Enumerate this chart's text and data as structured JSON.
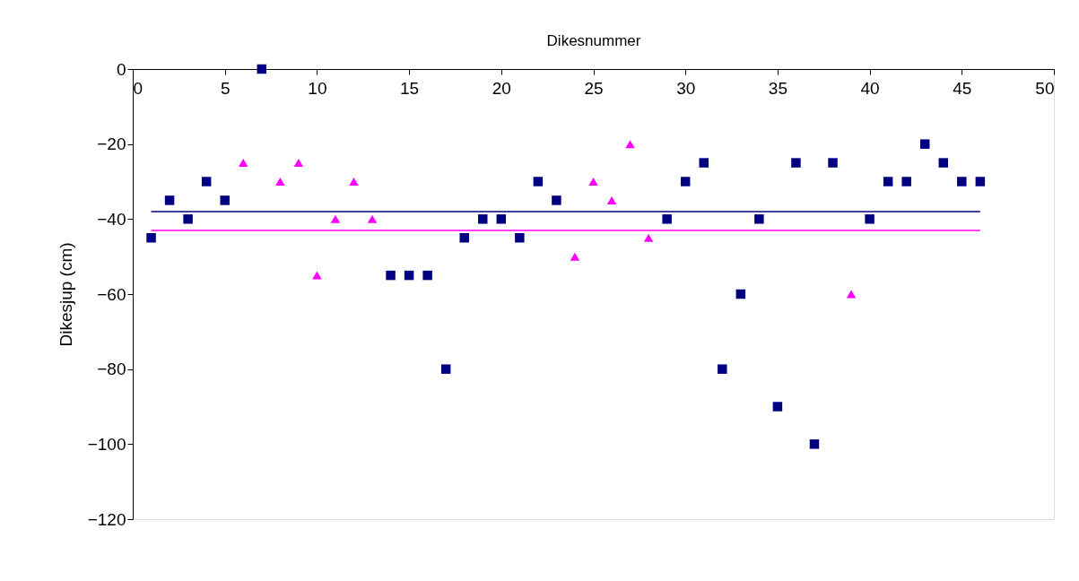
{
  "chart_data": {
    "type": "scatter",
    "xlabel": "Dikesnummer",
    "ylabel": "Dikesjup (cm)",
    "xlim": [
      0,
      50
    ],
    "xticks": [
      0,
      5,
      10,
      15,
      20,
      25,
      30,
      35,
      40,
      45,
      50
    ],
    "ylim": [
      -120,
      0
    ],
    "yticks": [
      -120,
      -100,
      -80,
      -60,
      -40,
      -20,
      0
    ],
    "grid": false,
    "series": [
      {
        "color": "#000080",
        "marker": "square",
        "x": [
          1,
          2,
          3,
          4,
          5,
          7,
          14,
          15,
          16,
          17,
          18,
          19,
          20,
          21,
          22,
          23,
          29,
          30,
          31,
          32,
          33,
          34,
          35,
          36,
          37,
          38,
          40,
          41,
          42,
          43,
          44,
          45,
          46
        ],
        "values": [
          -45,
          -35,
          -40,
          -30,
          -35,
          0,
          -55,
          -55,
          -55,
          -80,
          -45,
          -40,
          -40,
          -45,
          -30,
          -35,
          -40,
          -30,
          -25,
          -80,
          -60,
          -40,
          -90,
          -25,
          -100,
          -25,
          -40,
          -30,
          -30,
          -20,
          -25,
          -30,
          -30
        ]
      },
      {
        "color": "#ff00ff",
        "marker": "triangle",
        "x": [
          6,
          8,
          9,
          10,
          11,
          12,
          13,
          24,
          25,
          26,
          27,
          28,
          39
        ],
        "values": [
          -25,
          -30,
          -25,
          -55,
          -40,
          -30,
          -40,
          -50,
          -30,
          -35,
          -20,
          -45,
          -60
        ]
      },
      {
        "type": "line",
        "color": "#000080",
        "marker": "none",
        "line_style": "solid",
        "x": [
          1,
          46
        ],
        "values": [
          -38,
          -38
        ]
      },
      {
        "type": "line",
        "color": "#ff00ff",
        "marker": "none",
        "line_style": "solid",
        "x": [
          1,
          46
        ],
        "values": [
          -43,
          -43
        ]
      }
    ]
  }
}
